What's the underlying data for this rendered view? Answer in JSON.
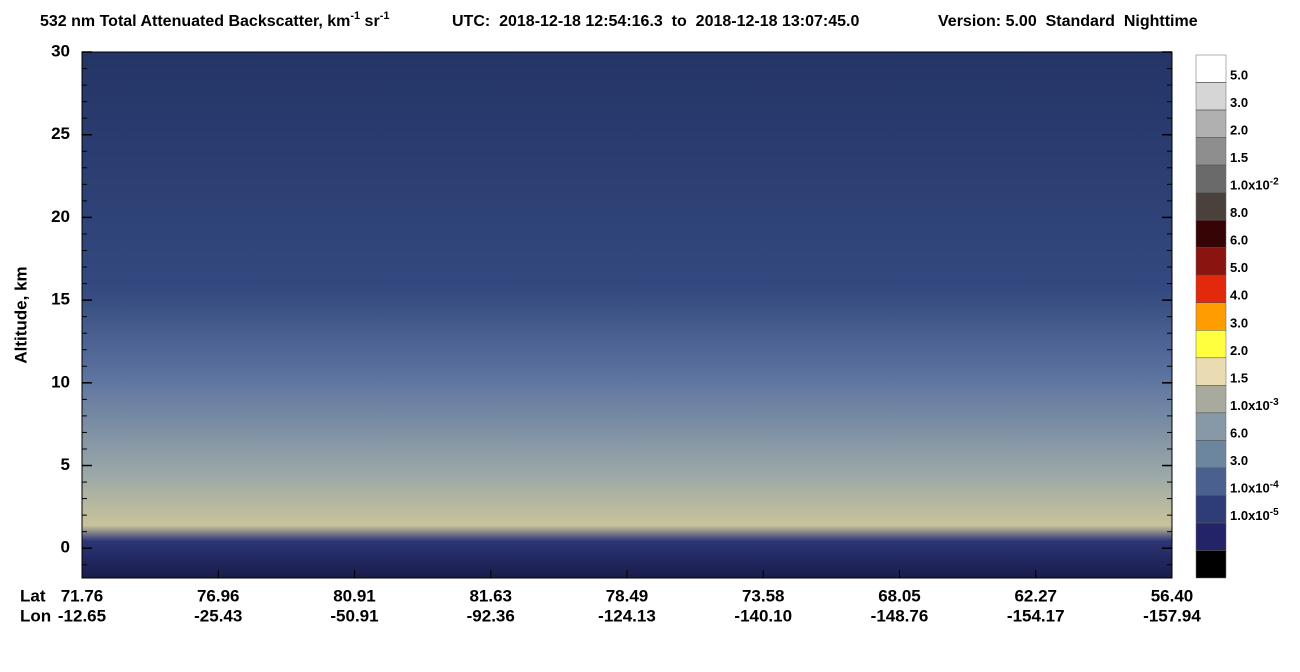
{
  "chart_data": {
    "type": "heatmap",
    "title_parts": [
      "532 nm Total Attenuated Backscatter, km",
      "-1",
      " sr",
      "-1"
    ],
    "utc": "UTC:  2018-12-18 12:54:16.3  to  2018-12-18 13:07:45.0",
    "version": "Version: 5.00  Standard  Nighttime",
    "ylabel": "Altitude, km",
    "ylim": [
      -1.8,
      30
    ],
    "yticks": [
      0,
      5,
      10,
      15,
      20,
      25,
      30
    ],
    "lat_label": "Lat",
    "lon_label": "Lon",
    "lat": [
      71.76,
      76.96,
      80.91,
      81.63,
      78.49,
      73.58,
      68.05,
      62.27,
      {
        "value": 56.4,
        "label": "56.40"
      }
    ],
    "lon": [
      -12.65,
      -25.43,
      -50.91,
      -92.36,
      -124.13,
      {
        "value": -140.1,
        "label": "-140.10"
      },
      -148.76,
      -154.17,
      -157.94
    ],
    "colorbar": [
      {
        "value": 0.05,
        "label": "5.0"
      },
      {
        "value": 0.03,
        "label": "3.0"
      },
      {
        "value": 0.02,
        "label": "2.0"
      },
      {
        "value": 0.015,
        "label": "1.5"
      },
      {
        "value": 0.01,
        "label": "1.0x10",
        "sup": "-2"
      },
      {
        "value": 0.008,
        "label": "8.0"
      },
      {
        "value": 0.006,
        "label": "6.0"
      },
      {
        "value": 0.005,
        "label": "5.0"
      },
      {
        "value": 0.004,
        "label": "4.0"
      },
      {
        "value": 0.003,
        "label": "3.0"
      },
      {
        "value": 0.002,
        "label": "2.0"
      },
      {
        "value": 0.0015,
        "label": "1.5"
      },
      {
        "value": 0.001,
        "label": "1.0x10",
        "sup": "-3"
      },
      {
        "value": 0.0006,
        "label": "6.0"
      },
      {
        "value": 0.0003,
        "label": "3.0"
      },
      {
        "value": 0.0001,
        "label": "1.0x10",
        "sup": "-4"
      },
      {
        "value": 1e-05,
        "label": "1.0x10",
        "sup": "-5"
      }
    ],
    "colors": [
      "#ffffff",
      "#d6d6d6",
      "#b0b0b0",
      "#8e8e8e",
      "#6a6a6a",
      "#4a403c",
      "#360404",
      "#8a1510",
      "#e3290b",
      "#ff9c00",
      "#ffff40",
      "#e9dcb2",
      "#a9aa9e",
      "#8799a7",
      "#6d86a0",
      "#4a6190",
      "#2e3c78",
      "#232468",
      "#000000"
    ]
  }
}
